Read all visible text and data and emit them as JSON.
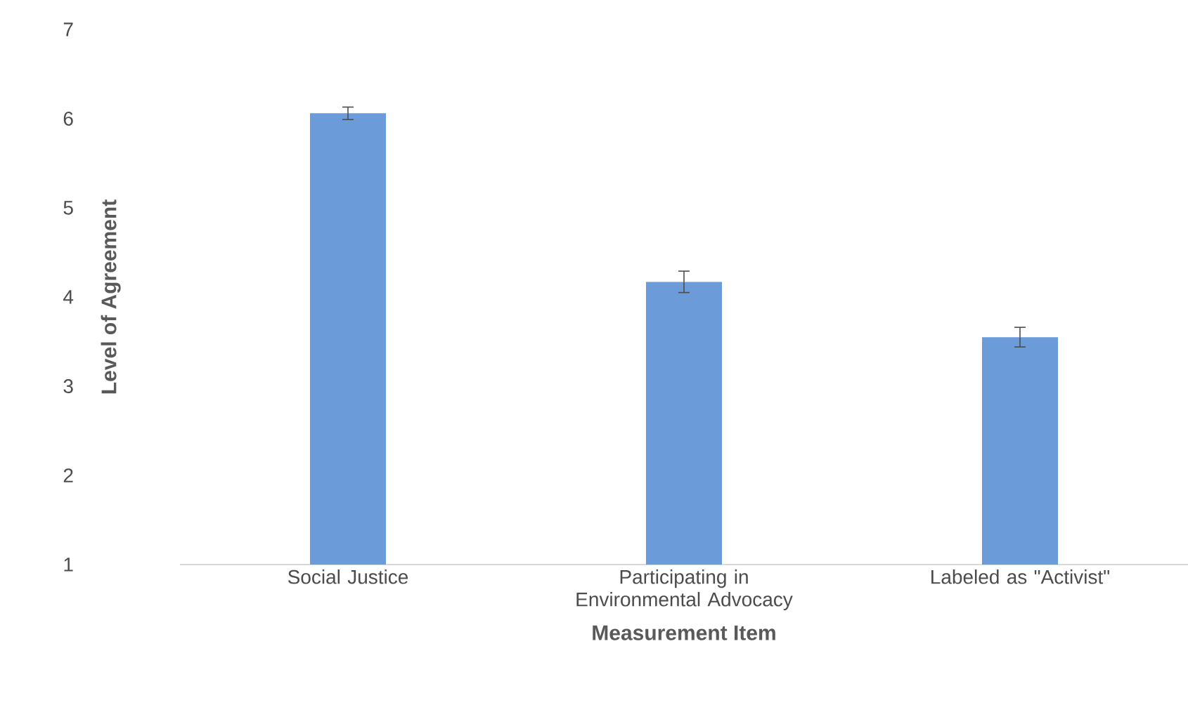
{
  "chart_data": {
    "type": "bar",
    "xlabel": "Measurement Item",
    "ylabel": "Level of Agreement",
    "categories": [
      "Social Justice",
      "Participating in Environmental Advocacy",
      "Labeled as \"Activist\""
    ],
    "values": [
      6.06,
      4.17,
      3.55
    ],
    "errors": [
      0.07,
      0.12,
      0.11
    ],
    "color": "#6b9bd8",
    "ylim": [
      1,
      7
    ],
    "yticks": [
      1,
      2,
      3,
      4,
      5,
      6,
      7
    ]
  }
}
